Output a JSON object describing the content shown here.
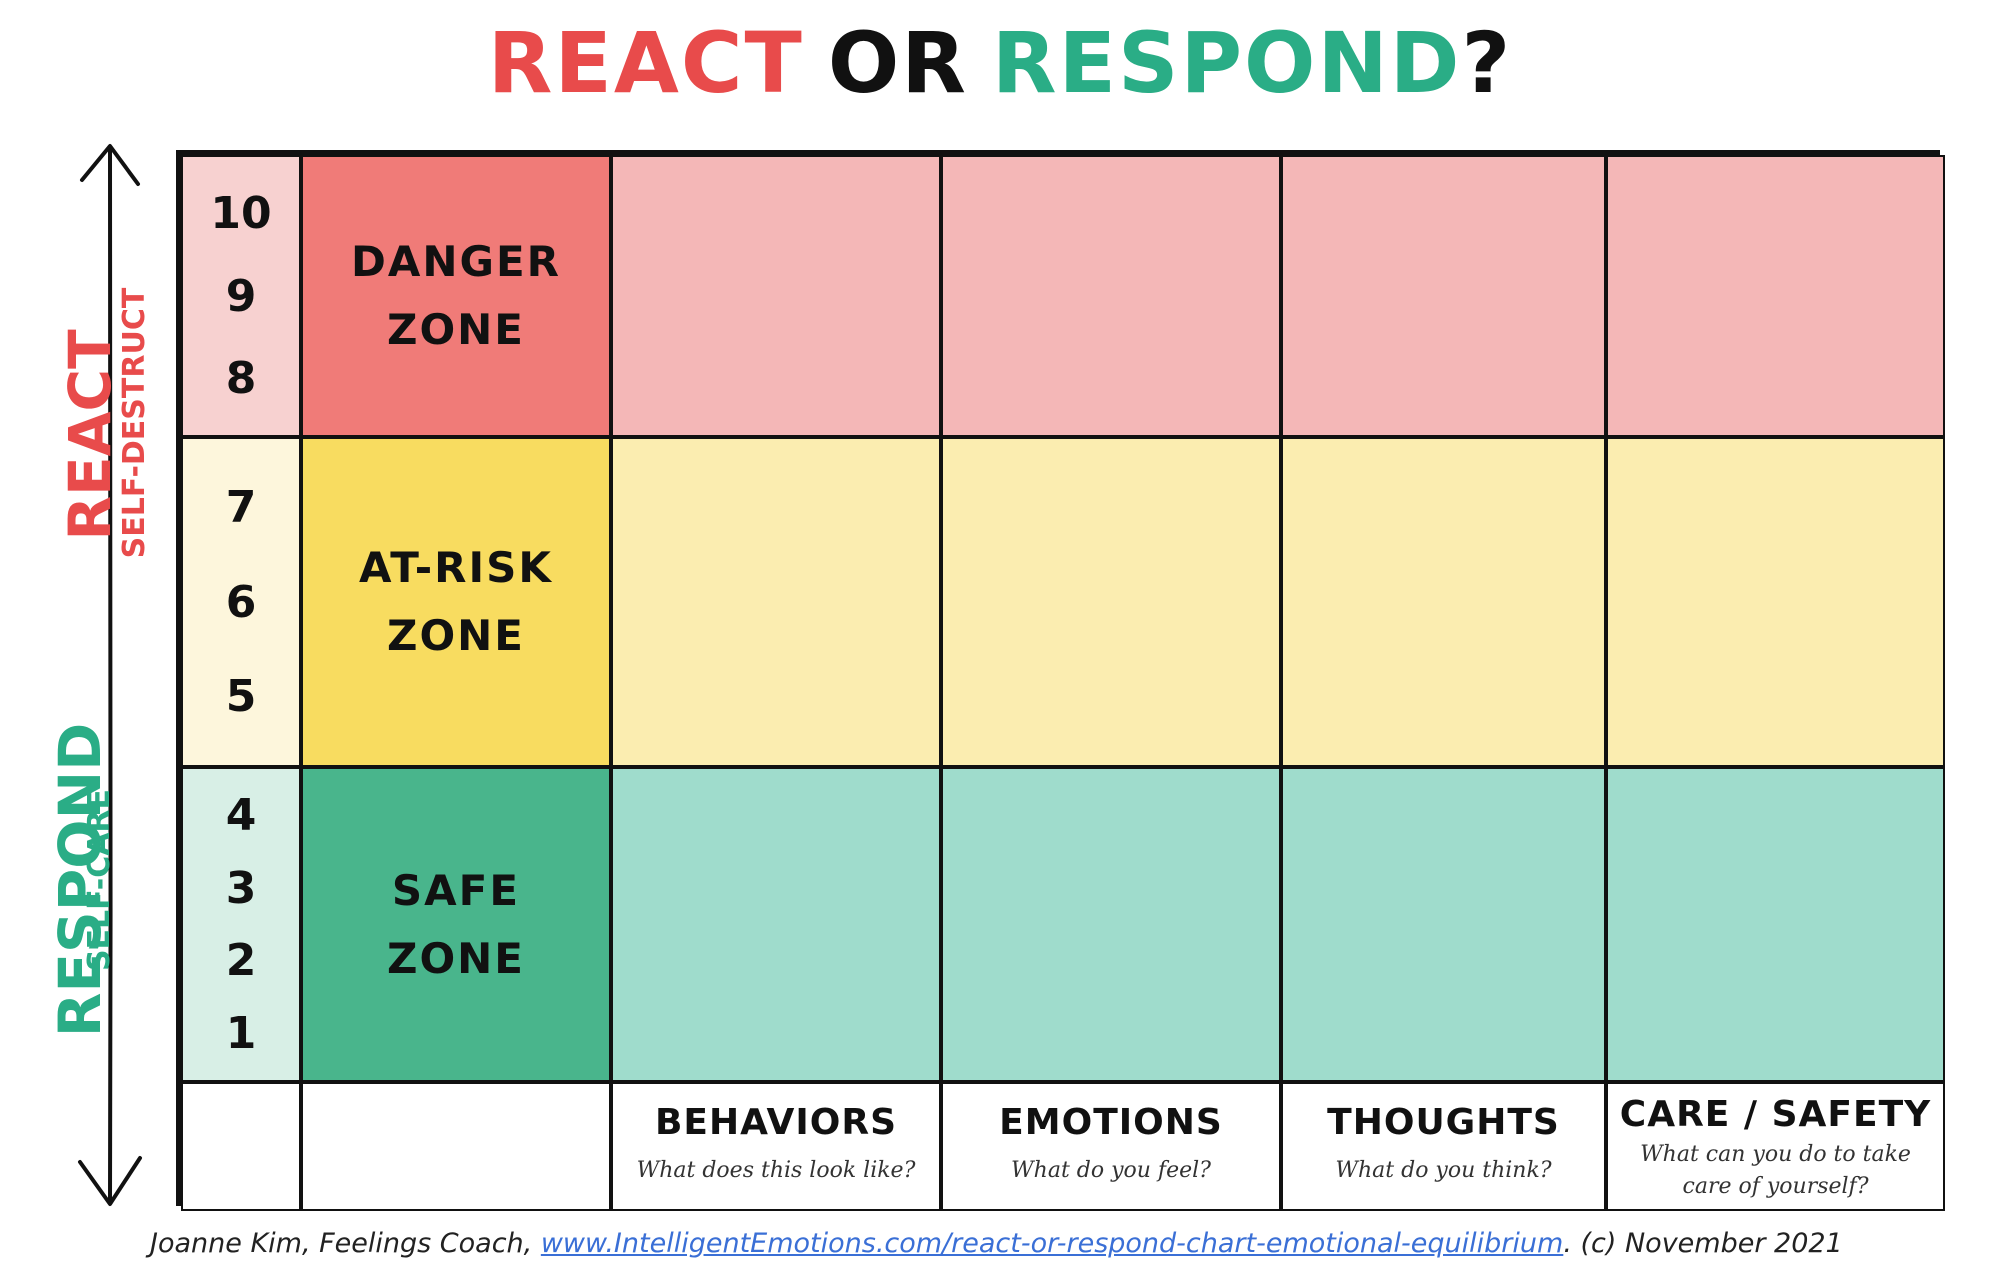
{
  "title": {
    "react": "REACT",
    "or": "OR",
    "respond": "RESPOND",
    "question": "?"
  },
  "axis": {
    "react": "REACT",
    "self_destruct": "SELF-DESTRUCT",
    "respond": "RESPOND",
    "self_care": "SELF-CARE"
  },
  "levels": {
    "danger": [
      "10",
      "9",
      "8"
    ],
    "at_risk": [
      "7",
      "6",
      "5"
    ],
    "safe": [
      "4",
      "3",
      "2",
      "1"
    ]
  },
  "zones": {
    "danger": [
      "DANGER",
      "ZONE"
    ],
    "at_risk": [
      "AT-RISK",
      "ZONE"
    ],
    "safe": [
      "SAFE",
      "ZONE"
    ]
  },
  "columns": [
    {
      "heading": "BEHAVIORS",
      "question": "What does this look like?"
    },
    {
      "heading": "EMOTIONS",
      "question": "What do you feel?"
    },
    {
      "heading": "THOUGHTS",
      "question": "What do you think?"
    },
    {
      "heading": "CARE / SAFETY",
      "question": "What can you do to take care of yourself?"
    }
  ],
  "footer": {
    "prefix": "Joanne Kim, Feelings Coach, ",
    "link": "www.IntelligentEmotions.com/react-or-respond-chart-emotional-equilibrium",
    "suffix": ". (c) November 2021"
  },
  "colors": {
    "react": "#e84b4b",
    "respond": "#2aad86",
    "danger": "#f07b78",
    "at_risk": "#f8dc60",
    "safe": "#49b58c"
  }
}
